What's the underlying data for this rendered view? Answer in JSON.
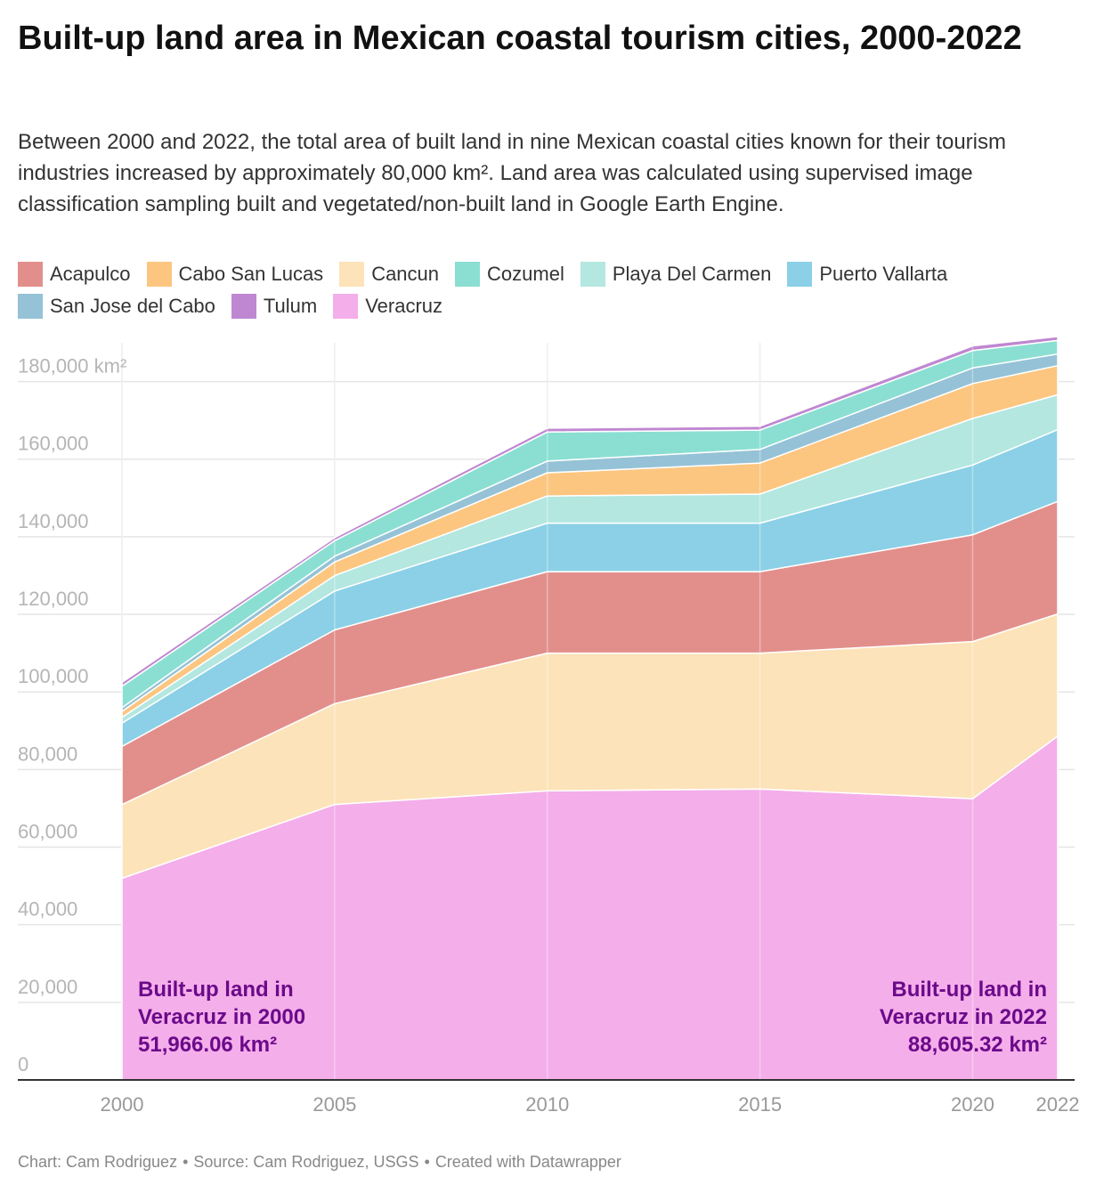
{
  "header": {
    "title": "Built-up land area in Mexican coastal tourism cities, 2000-2022",
    "subtitle": "Between 2000 and 2022, the total area of built land in nine Mexican coastal cities known for their tourism industries increased by approximately 80,000 km². Land area was calculated using supervised image classification sampling built and vegetated/non-built land in Google Earth Engine."
  },
  "footer": {
    "chart_credit": "Chart: Cam Rodriguez",
    "source": "Source: Cam Rodriguez, USGS",
    "tool": "Created with Datawrapper"
  },
  "chart_data": {
    "type": "area",
    "stacked": true,
    "x": [
      2000,
      2005,
      2010,
      2015,
      2020,
      2022
    ],
    "x_tick_labels": [
      "2000",
      "2005",
      "2010",
      "2015",
      "2020",
      "2022"
    ],
    "ylim": [
      0,
      190000
    ],
    "y_ticks": [
      0,
      20000,
      40000,
      60000,
      80000,
      100000,
      120000,
      140000,
      160000,
      180000
    ],
    "y_tick_labels": [
      "0",
      "20,000",
      "40,000",
      "60,000",
      "80,000",
      "100,000",
      "120,000",
      "140,000",
      "160,000",
      "180,000 km²"
    ],
    "grid": true,
    "legend_position": "top",
    "series": [
      {
        "name": "Veracruz",
        "color": "#f4aeea",
        "values": [
          51966,
          71000,
          74500,
          75000,
          72500,
          88605
        ]
      },
      {
        "name": "Cancun",
        "color": "#fde3b9",
        "values": [
          19000,
          26000,
          35500,
          35000,
          40500,
          31500
        ]
      },
      {
        "name": "Acapulco",
        "color": "#e28f8c",
        "values": [
          15000,
          19000,
          21000,
          21000,
          27500,
          29000
        ]
      },
      {
        "name": "Puerto Vallarta",
        "color": "#8bd0e6",
        "values": [
          6000,
          10000,
          12500,
          12500,
          18000,
          18500
        ]
      },
      {
        "name": "Playa Del Carmen",
        "color": "#b3e7e0",
        "values": [
          1500,
          4000,
          7000,
          7500,
          12000,
          9000
        ]
      },
      {
        "name": "Cabo San Lucas",
        "color": "#fcc681",
        "values": [
          1500,
          3500,
          6000,
          8000,
          9000,
          7500
        ]
      },
      {
        "name": "San Jose del Cabo",
        "color": "#95c2d6",
        "values": [
          1000,
          1500,
          3000,
          3500,
          4000,
          3000
        ]
      },
      {
        "name": "Cozumel",
        "color": "#8adfd2",
        "values": [
          5500,
          4000,
          7500,
          5000,
          4500,
          3500
        ]
      },
      {
        "name": "Tulum",
        "color": "#bf87d1",
        "values": [
          1000,
          800,
          1000,
          1000,
          1200,
          1000
        ]
      }
    ],
    "legend_order": [
      "Acapulco",
      "Cabo San Lucas",
      "Cancun",
      "Cozumel",
      "Playa Del Carmen",
      "Puerto Vallarta",
      "San Jose del Cabo",
      "Tulum",
      "Veracruz"
    ],
    "annotations": [
      {
        "lines": [
          "Built-up land in",
          "Veracruz in 2000",
          "51,966.06 km²"
        ],
        "anchor": "start",
        "color": "#6b0a8a"
      },
      {
        "lines": [
          "Built-up land in",
          "Veracruz in 2022",
          "88,605.32 km²"
        ],
        "anchor": "end",
        "color": "#6b0a8a"
      }
    ]
  }
}
